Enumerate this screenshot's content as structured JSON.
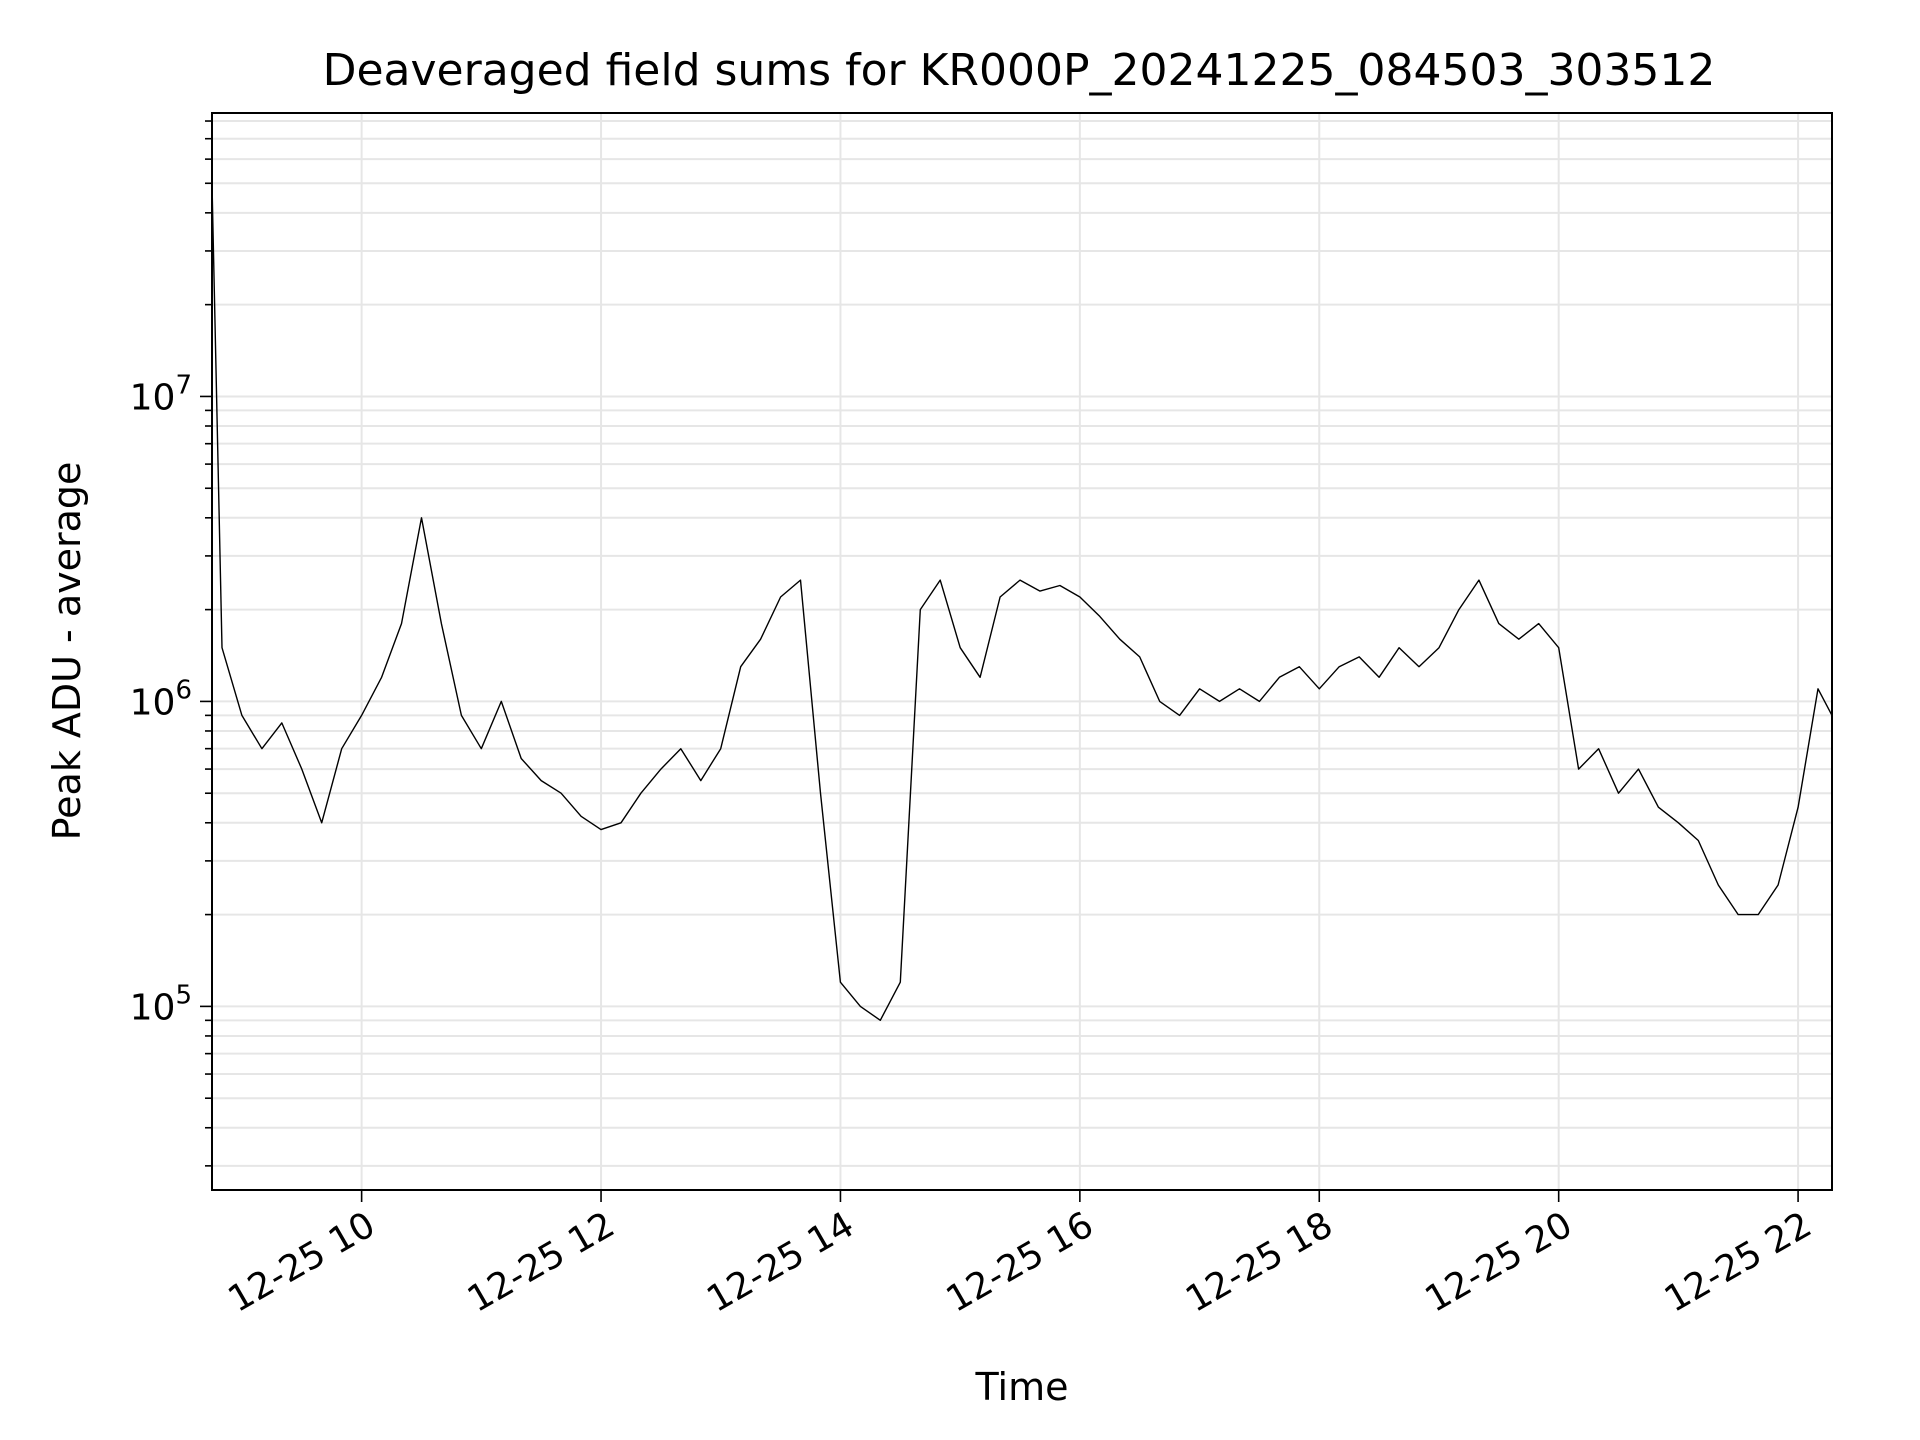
{
  "chart_data": {
    "type": "line",
    "title": "Deaveraged field sums for KR000P_20241225_084503_303512",
    "xlabel": "Time",
    "ylabel": "Peak ADU - average",
    "yscale": "log",
    "xlim": [
      "2024-12-25 08:45",
      "2024-12-25 22:17"
    ],
    "ylim": [
      25000,
      85000000
    ],
    "grid": true,
    "line_color": "#000000",
    "grid_color": "#e6e6e6",
    "x_ticks": [
      {
        "value": "2024-12-25 10:00",
        "label": "12-25 10"
      },
      {
        "value": "2024-12-25 12:00",
        "label": "12-25 12"
      },
      {
        "value": "2024-12-25 14:00",
        "label": "12-25 14"
      },
      {
        "value": "2024-12-25 16:00",
        "label": "12-25 16"
      },
      {
        "value": "2024-12-25 18:00",
        "label": "12-25 18"
      },
      {
        "value": "2024-12-25 20:00",
        "label": "12-25 20"
      },
      {
        "value": "2024-12-25 22:00",
        "label": "12-25 22"
      }
    ],
    "y_ticks": [
      {
        "value": 100000,
        "base": "10",
        "exponent": "5"
      },
      {
        "value": 1000000,
        "base": "10",
        "exponent": "6"
      },
      {
        "value": 10000000,
        "base": "10",
        "exponent": "7"
      }
    ],
    "series": [
      {
        "x": [
          "2024-12-25 08:45",
          "2024-12-25 08:50",
          "2024-12-25 09:00",
          "2024-12-25 09:10",
          "2024-12-25 09:20",
          "2024-12-25 09:30",
          "2024-12-25 09:40",
          "2024-12-25 09:50",
          "2024-12-25 10:00",
          "2024-12-25 10:10",
          "2024-12-25 10:20",
          "2024-12-25 10:30",
          "2024-12-25 10:40",
          "2024-12-25 10:50",
          "2024-12-25 11:00",
          "2024-12-25 11:10",
          "2024-12-25 11:20",
          "2024-12-25 11:30",
          "2024-12-25 11:40",
          "2024-12-25 11:50",
          "2024-12-25 12:00",
          "2024-12-25 12:10",
          "2024-12-25 12:20",
          "2024-12-25 12:30",
          "2024-12-25 12:40",
          "2024-12-25 12:50",
          "2024-12-25 13:00",
          "2024-12-25 13:10",
          "2024-12-25 13:20",
          "2024-12-25 13:30",
          "2024-12-25 13:40",
          "2024-12-25 13:50",
          "2024-12-25 14:00",
          "2024-12-25 14:10",
          "2024-12-25 14:20",
          "2024-12-25 14:30",
          "2024-12-25 14:40",
          "2024-12-25 14:50",
          "2024-12-25 15:00",
          "2024-12-25 15:10",
          "2024-12-25 15:20",
          "2024-12-25 15:30",
          "2024-12-25 15:40",
          "2024-12-25 15:50",
          "2024-12-25 16:00",
          "2024-12-25 16:10",
          "2024-12-25 16:20",
          "2024-12-25 16:30",
          "2024-12-25 16:40",
          "2024-12-25 16:50",
          "2024-12-25 17:00",
          "2024-12-25 17:10",
          "2024-12-25 17:20",
          "2024-12-25 17:30",
          "2024-12-25 17:40",
          "2024-12-25 17:50",
          "2024-12-25 18:00",
          "2024-12-25 18:10",
          "2024-12-25 18:20",
          "2024-12-25 18:30",
          "2024-12-25 18:40",
          "2024-12-25 18:50",
          "2024-12-25 19:00",
          "2024-12-25 19:10",
          "2024-12-25 19:20",
          "2024-12-25 19:30",
          "2024-12-25 19:40",
          "2024-12-25 19:50",
          "2024-12-25 20:00",
          "2024-12-25 20:10",
          "2024-12-25 20:20",
          "2024-12-25 20:30",
          "2024-12-25 20:40",
          "2024-12-25 20:50",
          "2024-12-25 21:00",
          "2024-12-25 21:10",
          "2024-12-25 21:20",
          "2024-12-25 21:30",
          "2024-12-25 21:40",
          "2024-12-25 21:50",
          "2024-12-25 22:00",
          "2024-12-25 22:10",
          "2024-12-25 22:17"
        ],
        "y": [
          50000000,
          1500000,
          900000,
          700000,
          850000,
          600000,
          400000,
          700000,
          900000,
          1200000,
          1800000,
          4000000,
          1800000,
          900000,
          700000,
          1000000,
          650000,
          550000,
          500000,
          420000,
          380000,
          400000,
          500000,
          600000,
          700000,
          550000,
          700000,
          1300000,
          1600000,
          2200000,
          2500000,
          500000,
          120000,
          100000,
          90000,
          120000,
          2000000,
          2500000,
          1500000,
          1200000,
          2200000,
          2500000,
          2300000,
          2400000,
          2200000,
          1900000,
          1600000,
          1400000,
          1000000,
          900000,
          1100000,
          1000000,
          1100000,
          1000000,
          1200000,
          1300000,
          1100000,
          1300000,
          1400000,
          1200000,
          1500000,
          1300000,
          1500000,
          2000000,
          2500000,
          1800000,
          1600000,
          1800000,
          1500000,
          600000,
          700000,
          500000,
          600000,
          450000,
          400000,
          350000,
          250000,
          200000,
          200000,
          250000,
          450000,
          1100000,
          900000
        ]
      }
    ]
  }
}
